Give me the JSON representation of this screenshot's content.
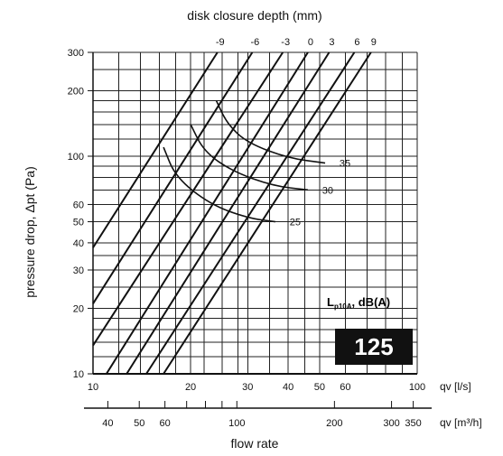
{
  "chart_data": {
    "type": "line",
    "scale": "log-log",
    "title": "disk closure depth (mm)",
    "xlabel": "flow rate",
    "ylabel": "pressure drop, Δpt (Pa)",
    "x_unit_primary": "qv [l/s]",
    "x_unit_secondary": "qv [m³/h]",
    "xlim": [
      10,
      100
    ],
    "ylim": [
      10,
      300
    ],
    "x_ticks_primary": [
      "10",
      "20",
      "30",
      "40",
      "50",
      "60",
      "100"
    ],
    "x_ticks_secondary": [
      "40",
      "50",
      "60",
      "100",
      "200",
      "300",
      "350"
    ],
    "y_ticks": [
      "10",
      "20",
      "30",
      "40",
      "50",
      "60",
      "100",
      "200",
      "300"
    ],
    "closure_ticks": [
      "-9",
      "-6",
      "-3",
      "0",
      "3",
      "6",
      "9"
    ],
    "noise_label": "Lp10A, dB(A)",
    "size_label": "125",
    "grid": true,
    "series": [
      {
        "name": "-9",
        "points": [
          [
            10,
            38
          ],
          [
            24.2,
            300
          ]
        ]
      },
      {
        "name": "-6",
        "points": [
          [
            10,
            21
          ],
          [
            31,
            300
          ]
        ]
      },
      {
        "name": "-3",
        "points": [
          [
            10,
            13.5
          ],
          [
            38.5,
            300
          ]
        ]
      },
      {
        "name": "0",
        "points": [
          [
            11,
            10
          ],
          [
            46,
            300
          ]
        ]
      },
      {
        "name": "3",
        "points": [
          [
            12.7,
            10
          ],
          [
            53.5,
            300
          ]
        ]
      },
      {
        "name": "6",
        "points": [
          [
            14.6,
            10
          ],
          [
            64,
            300
          ]
        ]
      },
      {
        "name": "9",
        "points": [
          [
            16.5,
            10
          ],
          [
            72,
            300
          ]
        ]
      }
    ],
    "noise_curves": [
      {
        "label": "35",
        "points": [
          [
            24,
            180
          ],
          [
            26,
            140
          ],
          [
            30,
            115
          ],
          [
            40,
            98
          ],
          [
            52,
            93
          ]
        ]
      },
      {
        "label": "30",
        "points": [
          [
            20,
            140
          ],
          [
            22,
            105
          ],
          [
            27,
            85
          ],
          [
            36,
            73
          ],
          [
            46,
            70
          ]
        ]
      },
      {
        "label": "25",
        "points": [
          [
            16.5,
            110
          ],
          [
            18,
            80
          ],
          [
            23,
            60
          ],
          [
            30,
            52
          ],
          [
            36.5,
            50
          ]
        ]
      }
    ]
  }
}
